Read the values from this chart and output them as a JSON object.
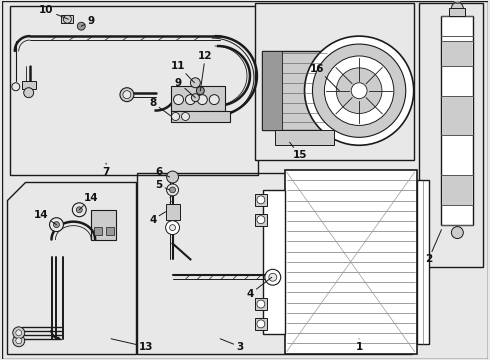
{
  "bg_color": "#e8e8e8",
  "line_color": "#1a1a1a",
  "white": "#ffffff",
  "light_gray": "#cccccc",
  "mid_gray": "#999999",
  "dark_gray": "#555555",
  "fig_width": 4.9,
  "fig_height": 3.6,
  "dpi": 100
}
